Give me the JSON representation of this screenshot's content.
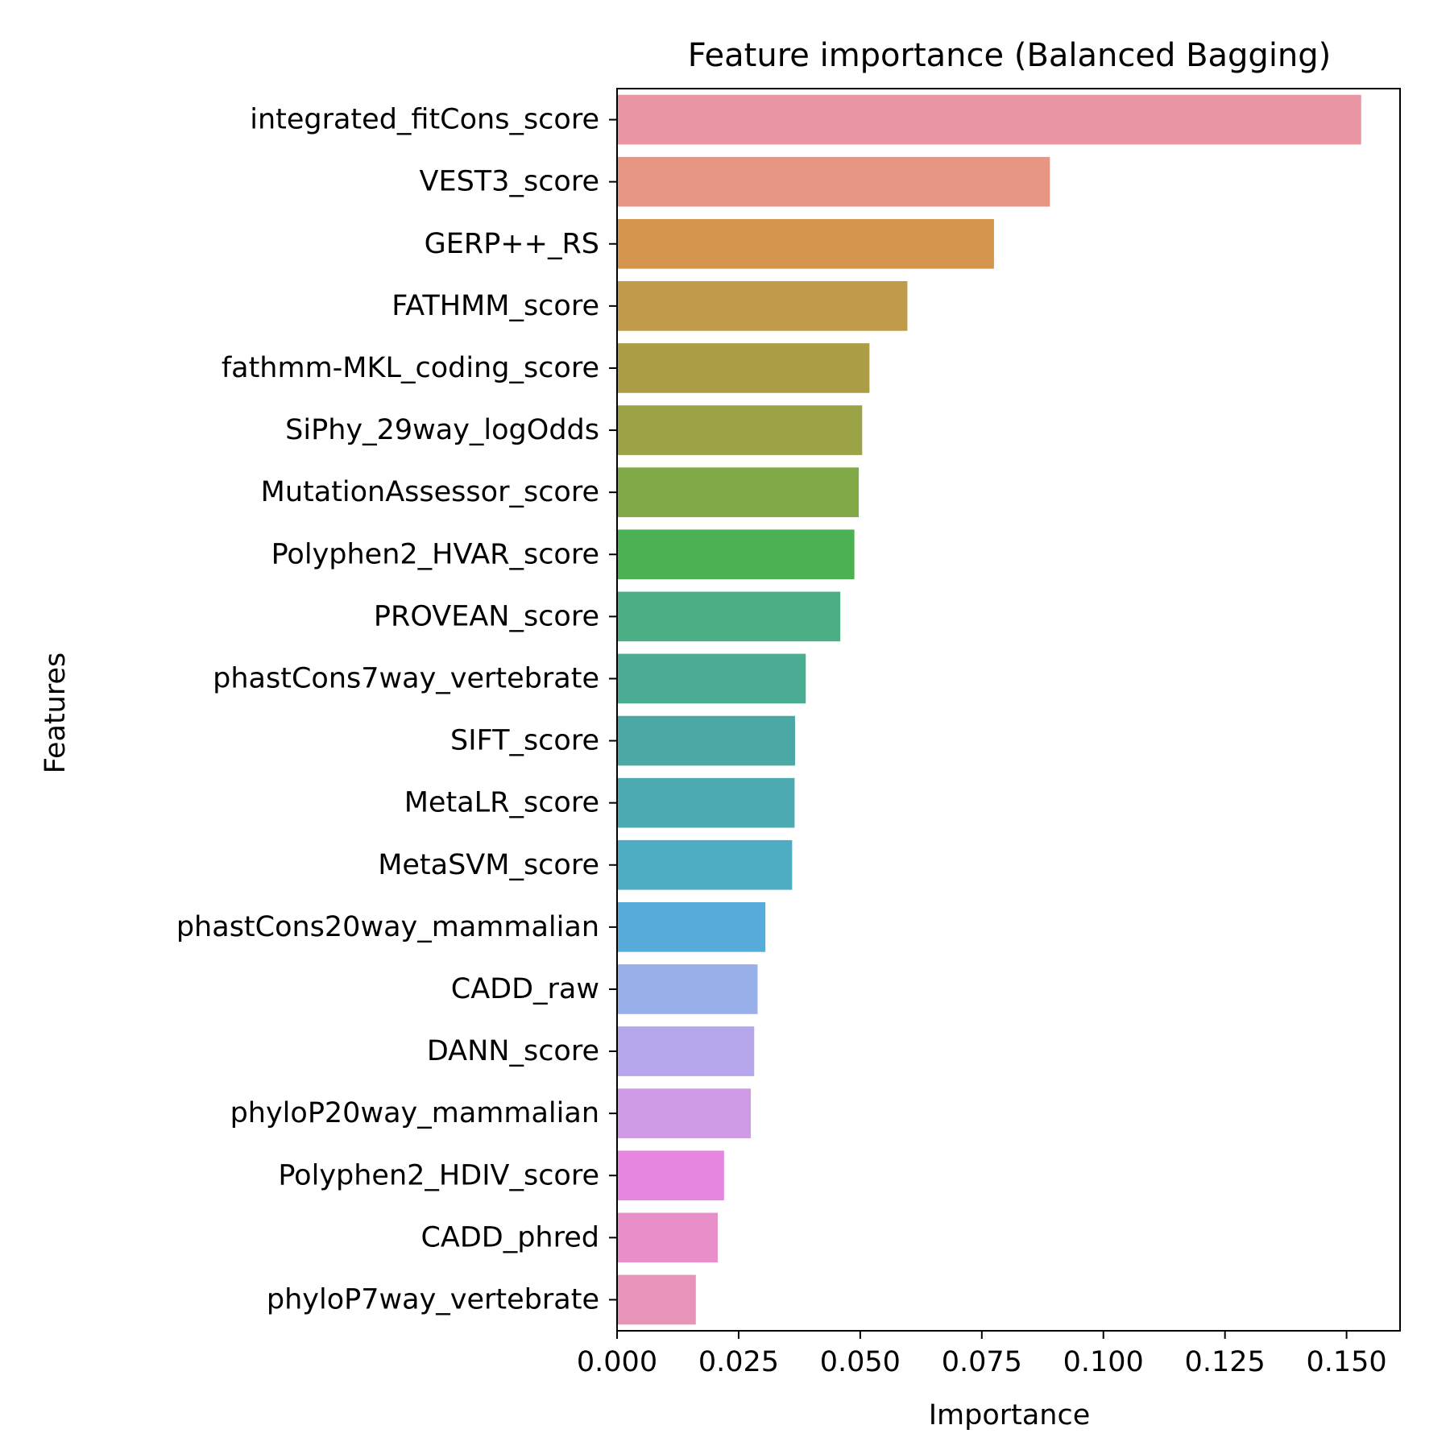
{
  "chart_data": {
    "type": "bar",
    "orientation": "horizontal",
    "title": "Feature importance (Balanced Bagging)",
    "xlabel": "Importance",
    "ylabel": "Features",
    "xlim": [
      0,
      0.161
    ],
    "xticks": [
      0.0,
      0.025,
      0.05,
      0.075,
      0.1,
      0.125,
      0.15
    ],
    "xtick_labels": [
      "0.000",
      "0.025",
      "0.050",
      "0.075",
      "0.100",
      "0.125",
      "0.150"
    ],
    "grid": false,
    "legend": "none",
    "categories": [
      "integrated_fitCons_score",
      "VEST3_score",
      "GERP++_RS",
      "FATHMM_score",
      "fathmm-MKL_coding_score",
      "SiPhy_29way_logOdds",
      "MutationAssessor_score",
      "Polyphen2_HVAR_score",
      "PROVEAN_score",
      "phastCons7way_vertebrate",
      "SIFT_score",
      "MetaLR_score",
      "MetaSVM_score",
      "phastCons20way_mammalian",
      "CADD_raw",
      "DANN_score",
      "phyloP20way_mammalian",
      "Polyphen2_HDIV_score",
      "CADD_phred",
      "phyloP7way_vertebrate"
    ],
    "values": [
      0.153,
      0.089,
      0.0775,
      0.0597,
      0.0519,
      0.0504,
      0.0497,
      0.0488,
      0.0459,
      0.0388,
      0.0366,
      0.0365,
      0.036,
      0.0305,
      0.0289,
      0.0282,
      0.0275,
      0.022,
      0.0207,
      0.0162
    ],
    "colors": [
      "#e996a2",
      "#e79683",
      "#d4944c",
      "#bf9b4a",
      "#ac9d47",
      "#9ca346",
      "#82a947",
      "#4bb153",
      "#4bae85",
      "#4bad93",
      "#4aa9a4",
      "#4babb1",
      "#4eacc3",
      "#56acdb",
      "#98afe9",
      "#b6a7ed",
      "#d09be6",
      "#e587e0",
      "#e88fc9",
      "#e894b9"
    ]
  }
}
